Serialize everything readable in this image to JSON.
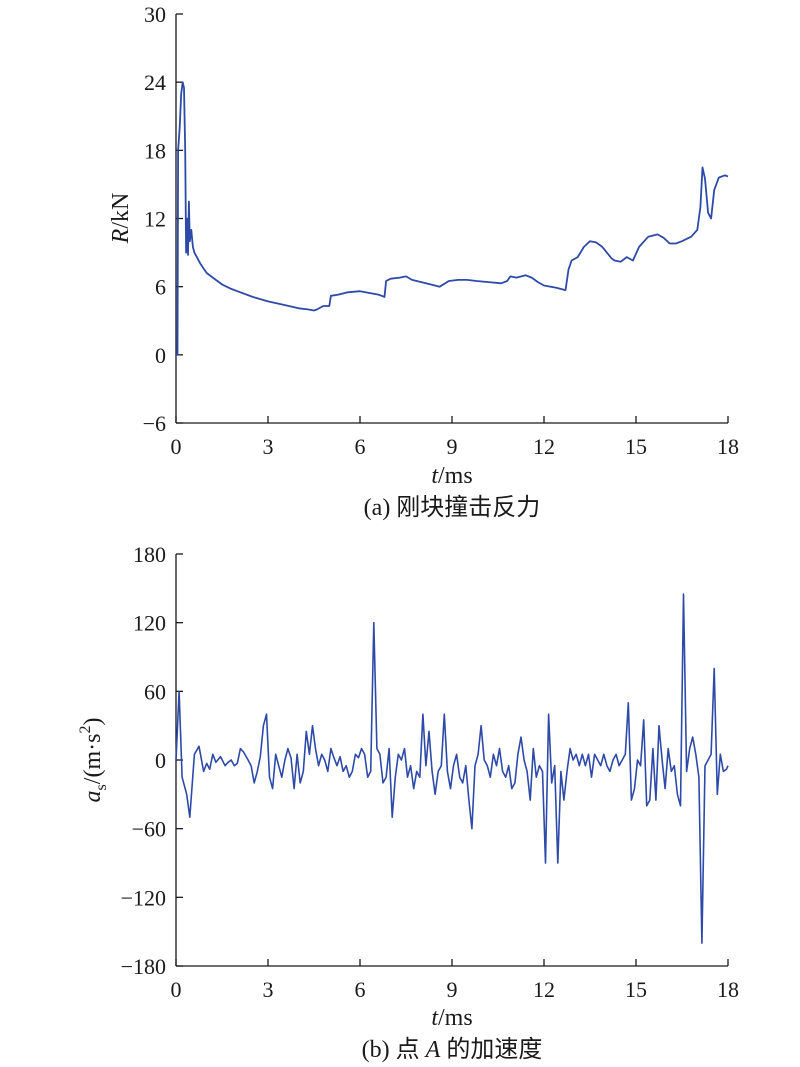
{
  "colors": {
    "line": "#2e4aa8",
    "axis": "#1a1a1a",
    "background": "#ffffff"
  },
  "chart_data": [
    {
      "id": "a",
      "type": "line",
      "caption": "(a) 刚块撞击反力",
      "ylabel_var": "R",
      "ylabel_unit": "/kN",
      "xlabel_var": "t",
      "xlabel_unit": "/ms",
      "xlim": [
        0,
        18
      ],
      "ylim": [
        -6,
        30
      ],
      "xticks": [
        0,
        3,
        6,
        9,
        12,
        15,
        18
      ],
      "yticks": [
        -6,
        0,
        6,
        12,
        18,
        24,
        30
      ],
      "grid": false,
      "series": [
        {
          "points": [
            [
              0,
              0
            ],
            [
              0.05,
              0
            ],
            [
              0.07,
              18
            ],
            [
              0.12,
              20
            ],
            [
              0.17,
              23
            ],
            [
              0.22,
              24
            ],
            [
              0.26,
              23.5
            ],
            [
              0.3,
              18
            ],
            [
              0.33,
              9
            ],
            [
              0.36,
              12
            ],
            [
              0.39,
              8.8
            ],
            [
              0.42,
              13.5
            ],
            [
              0.45,
              10
            ],
            [
              0.5,
              11
            ],
            [
              0.55,
              9.5
            ],
            [
              0.6,
              9
            ],
            [
              0.7,
              8.5
            ],
            [
              0.8,
              8
            ],
            [
              0.9,
              7.6
            ],
            [
              1.0,
              7.2
            ],
            [
              1.2,
              6.8
            ],
            [
              1.5,
              6.2
            ],
            [
              1.8,
              5.8
            ],
            [
              2.0,
              5.6
            ],
            [
              2.5,
              5.1
            ],
            [
              3.0,
              4.7
            ],
            [
              3.5,
              4.4
            ],
            [
              4.0,
              4.1
            ],
            [
              4.3,
              4.0
            ],
            [
              4.5,
              3.9
            ],
            [
              4.6,
              4.0
            ],
            [
              4.8,
              4.3
            ],
            [
              5.0,
              4.3
            ],
            [
              5.05,
              5.2
            ],
            [
              5.3,
              5.3
            ],
            [
              5.6,
              5.5
            ],
            [
              6.0,
              5.6
            ],
            [
              6.4,
              5.4
            ],
            [
              6.6,
              5.3
            ],
            [
              6.8,
              5.1
            ],
            [
              6.85,
              6.5
            ],
            [
              7.0,
              6.7
            ],
            [
              7.3,
              6.8
            ],
            [
              7.5,
              6.9
            ],
            [
              7.7,
              6.6
            ],
            [
              8.0,
              6.4
            ],
            [
              8.3,
              6.2
            ],
            [
              8.6,
              6.0
            ],
            [
              8.9,
              6.5
            ],
            [
              9.2,
              6.6
            ],
            [
              9.5,
              6.6
            ],
            [
              9.8,
              6.5
            ],
            [
              10.2,
              6.4
            ],
            [
              10.6,
              6.3
            ],
            [
              10.8,
              6.5
            ],
            [
              10.9,
              6.9
            ],
            [
              11.1,
              6.8
            ],
            [
              11.4,
              7.0
            ],
            [
              11.6,
              6.8
            ],
            [
              11.8,
              6.4
            ],
            [
              12.0,
              6.1
            ],
            [
              12.4,
              5.9
            ],
            [
              12.7,
              5.7
            ],
            [
              12.8,
              7.5
            ],
            [
              12.9,
              8.3
            ],
            [
              13.1,
              8.6
            ],
            [
              13.3,
              9.5
            ],
            [
              13.5,
              10.0
            ],
            [
              13.7,
              9.9
            ],
            [
              13.9,
              9.5
            ],
            [
              14.2,
              8.5
            ],
            [
              14.3,
              8.3
            ],
            [
              14.5,
              8.2
            ],
            [
              14.7,
              8.6
            ],
            [
              14.9,
              8.3
            ],
            [
              15.1,
              9.5
            ],
            [
              15.4,
              10.4
            ],
            [
              15.7,
              10.6
            ],
            [
              15.9,
              10.3
            ],
            [
              16.1,
              9.8
            ],
            [
              16.3,
              9.8
            ],
            [
              16.5,
              10.0
            ],
            [
              16.8,
              10.4
            ],
            [
              17.0,
              11.0
            ],
            [
              17.1,
              13.0
            ],
            [
              17.17,
              16.5
            ],
            [
              17.25,
              15.5
            ],
            [
              17.35,
              12.5
            ],
            [
              17.45,
              12.0
            ],
            [
              17.55,
              14.5
            ],
            [
              17.7,
              15.6
            ],
            [
              17.9,
              15.8
            ],
            [
              18.0,
              15.7
            ]
          ]
        }
      ]
    },
    {
      "id": "b",
      "type": "line",
      "caption_prefix": "(b) 点 ",
      "caption_var": "A",
      "caption_suffix": " 的加速度",
      "ylabel_var": "a",
      "ylabel_sub": "s",
      "ylabel_unit": "/(m·s",
      "ylabel_sup": "2",
      "ylabel_close": ")",
      "xlabel_var": "t",
      "xlabel_unit": "/ms",
      "xlim": [
        0,
        18
      ],
      "ylim": [
        -180,
        180
      ],
      "xticks": [
        0,
        3,
        6,
        9,
        12,
        15,
        18
      ],
      "yticks": [
        -180,
        -120,
        -60,
        0,
        60,
        120,
        180
      ],
      "grid": false,
      "series": [
        {
          "points": [
            [
              0,
              0
            ],
            [
              0.1,
              60
            ],
            [
              0.2,
              -15
            ],
            [
              0.35,
              -30
            ],
            [
              0.45,
              -50
            ],
            [
              0.6,
              5
            ],
            [
              0.75,
              12
            ],
            [
              0.9,
              -10
            ],
            [
              1.0,
              -3
            ],
            [
              1.1,
              -8
            ],
            [
              1.2,
              5
            ],
            [
              1.3,
              -2
            ],
            [
              1.45,
              3
            ],
            [
              1.6,
              -5
            ],
            [
              1.7,
              -2
            ],
            [
              1.8,
              0
            ],
            [
              1.9,
              -5
            ],
            [
              2.0,
              -3
            ],
            [
              2.1,
              10
            ],
            [
              2.2,
              7
            ],
            [
              2.35,
              0
            ],
            [
              2.45,
              -5
            ],
            [
              2.55,
              -20
            ],
            [
              2.65,
              -10
            ],
            [
              2.75,
              3
            ],
            [
              2.85,
              30
            ],
            [
              2.95,
              40
            ],
            [
              3.05,
              -15
            ],
            [
              3.15,
              -25
            ],
            [
              3.25,
              5
            ],
            [
              3.35,
              -5
            ],
            [
              3.45,
              -15
            ],
            [
              3.55,
              0
            ],
            [
              3.65,
              10
            ],
            [
              3.75,
              2
            ],
            [
              3.85,
              -25
            ],
            [
              3.95,
              5
            ],
            [
              4.05,
              -20
            ],
            [
              4.15,
              -10
            ],
            [
              4.25,
              25
            ],
            [
              4.35,
              5
            ],
            [
              4.45,
              30
            ],
            [
              4.55,
              10
            ],
            [
              4.65,
              -5
            ],
            [
              4.75,
              5
            ],
            [
              4.85,
              0
            ],
            [
              4.95,
              -10
            ],
            [
              5.05,
              10
            ],
            [
              5.15,
              2
            ],
            [
              5.25,
              -5
            ],
            [
              5.35,
              3
            ],
            [
              5.45,
              -10
            ],
            [
              5.55,
              -5
            ],
            [
              5.65,
              -15
            ],
            [
              5.75,
              -10
            ],
            [
              5.85,
              5
            ],
            [
              5.95,
              2
            ],
            [
              6.05,
              10
            ],
            [
              6.15,
              5
            ],
            [
              6.25,
              -15
            ],
            [
              6.35,
              -10
            ],
            [
              6.45,
              120
            ],
            [
              6.55,
              10
            ],
            [
              6.65,
              5
            ],
            [
              6.75,
              -20
            ],
            [
              6.85,
              -15
            ],
            [
              6.95,
              10
            ],
            [
              7.05,
              -50
            ],
            [
              7.15,
              -15
            ],
            [
              7.25,
              5
            ],
            [
              7.35,
              0
            ],
            [
              7.45,
              10
            ],
            [
              7.55,
              -15
            ],
            [
              7.65,
              -5
            ],
            [
              7.75,
              -25
            ],
            [
              7.85,
              -10
            ],
            [
              7.95,
              -15
            ],
            [
              8.05,
              40
            ],
            [
              8.15,
              -5
            ],
            [
              8.25,
              25
            ],
            [
              8.35,
              -10
            ],
            [
              8.45,
              -30
            ],
            [
              8.55,
              -10
            ],
            [
              8.65,
              -5
            ],
            [
              8.75,
              40
            ],
            [
              8.85,
              -10
            ],
            [
              8.95,
              -25
            ],
            [
              9.05,
              -5
            ],
            [
              9.15,
              5
            ],
            [
              9.25,
              -15
            ],
            [
              9.35,
              -20
            ],
            [
              9.45,
              -5
            ],
            [
              9.55,
              -35
            ],
            [
              9.65,
              -60
            ],
            [
              9.75,
              -5
            ],
            [
              9.85,
              5
            ],
            [
              9.95,
              30
            ],
            [
              10.05,
              0
            ],
            [
              10.15,
              -5
            ],
            [
              10.25,
              -15
            ],
            [
              10.35,
              5
            ],
            [
              10.45,
              -5
            ],
            [
              10.55,
              10
            ],
            [
              10.65,
              -10
            ],
            [
              10.75,
              -15
            ],
            [
              10.85,
              -5
            ],
            [
              10.95,
              -25
            ],
            [
              11.05,
              -20
            ],
            [
              11.15,
              5
            ],
            [
              11.25,
              20
            ],
            [
              11.35,
              0
            ],
            [
              11.45,
              -10
            ],
            [
              11.55,
              -35
            ],
            [
              11.65,
              10
            ],
            [
              11.75,
              -15
            ],
            [
              11.85,
              -5
            ],
            [
              11.95,
              -10
            ],
            [
              12.05,
              -90
            ],
            [
              12.15,
              40
            ],
            [
              12.25,
              -20
            ],
            [
              12.35,
              -5
            ],
            [
              12.45,
              -90
            ],
            [
              12.55,
              -10
            ],
            [
              12.65,
              -35
            ],
            [
              12.75,
              -10
            ],
            [
              12.85,
              10
            ],
            [
              12.95,
              0
            ],
            [
              13.05,
              5
            ],
            [
              13.15,
              -5
            ],
            [
              13.25,
              5
            ],
            [
              13.35,
              -5
            ],
            [
              13.45,
              5
            ],
            [
              13.55,
              -15
            ],
            [
              13.65,
              5
            ],
            [
              13.75,
              0
            ],
            [
              13.85,
              -5
            ],
            [
              13.95,
              5
            ],
            [
              14.05,
              -5
            ],
            [
              14.15,
              -10
            ],
            [
              14.25,
              0
            ],
            [
              14.35,
              5
            ],
            [
              14.45,
              -5
            ],
            [
              14.55,
              0
            ],
            [
              14.65,
              5
            ],
            [
              14.75,
              50
            ],
            [
              14.85,
              -35
            ],
            [
              14.95,
              -25
            ],
            [
              15.05,
              0
            ],
            [
              15.15,
              -5
            ],
            [
              15.25,
              35
            ],
            [
              15.35,
              -40
            ],
            [
              15.45,
              -35
            ],
            [
              15.55,
              10
            ],
            [
              15.65,
              -35
            ],
            [
              15.75,
              30
            ],
            [
              15.85,
              0
            ],
            [
              15.95,
              -25
            ],
            [
              16.05,
              10
            ],
            [
              16.15,
              -10
            ],
            [
              16.25,
              -5
            ],
            [
              16.35,
              -30
            ],
            [
              16.45,
              -40
            ],
            [
              16.55,
              145
            ],
            [
              16.65,
              -10
            ],
            [
              16.75,
              10
            ],
            [
              16.85,
              20
            ],
            [
              16.95,
              5
            ],
            [
              17.05,
              -15
            ],
            [
              17.15,
              -160
            ],
            [
              17.25,
              -5
            ],
            [
              17.35,
              0
            ],
            [
              17.45,
              5
            ],
            [
              17.55,
              80
            ],
            [
              17.65,
              -30
            ],
            [
              17.75,
              5
            ],
            [
              17.85,
              -10
            ],
            [
              17.95,
              -8
            ],
            [
              18.0,
              -5
            ]
          ]
        }
      ]
    }
  ]
}
